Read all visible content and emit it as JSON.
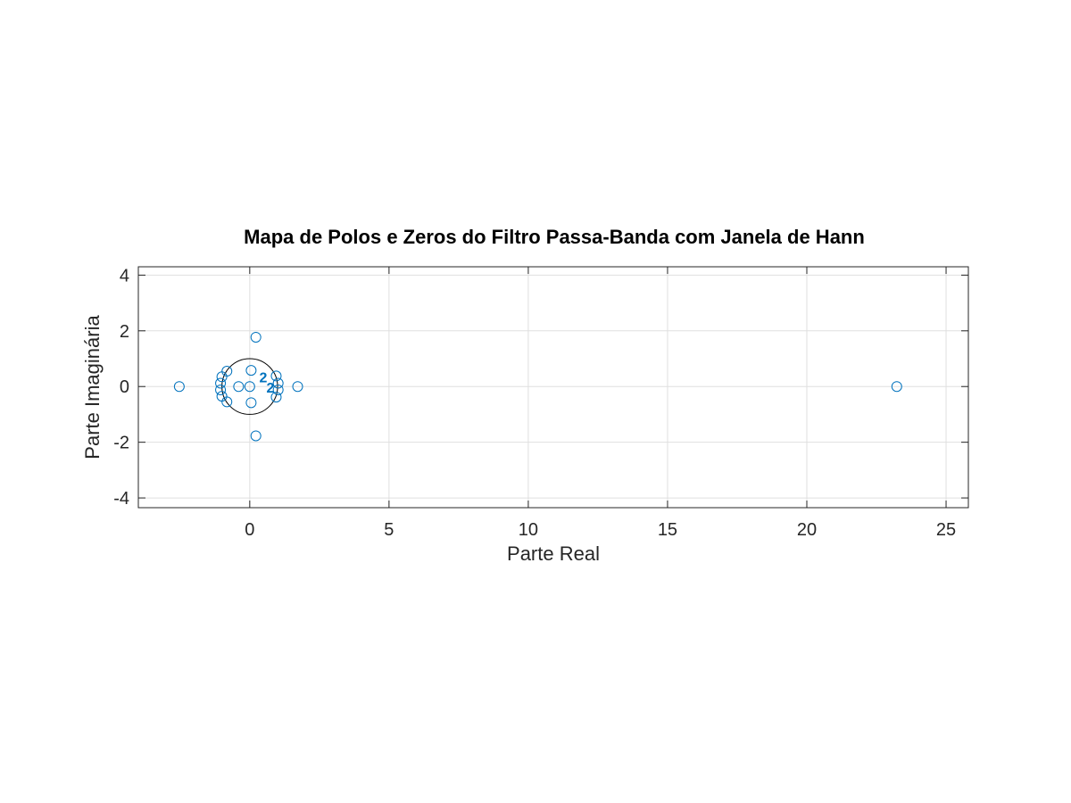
{
  "chart_data": {
    "type": "scatter",
    "title": "Mapa de Polos e Zeros do Filtro Passa-Banda com Janela de Hann",
    "xlabel": "Parte Real",
    "ylabel": "Parte Imaginária",
    "xlim": [
      -4,
      25.8
    ],
    "ylim": [
      -4.35,
      4.3
    ],
    "xticks": [
      0,
      5,
      10,
      15,
      20,
      25
    ],
    "yticks": [
      -4,
      -2,
      0,
      2,
      4
    ],
    "grid": true,
    "unit_circle": true,
    "series": [
      {
        "marker": "circle",
        "color": "#0072BD",
        "points": [
          {
            "x": -2.53,
            "y": 0
          },
          {
            "x": -1.0,
            "y": 0.35
          },
          {
            "x": -1.05,
            "y": 0.12
          },
          {
            "x": -1.05,
            "y": -0.12
          },
          {
            "x": -1.0,
            "y": -0.35
          },
          {
            "x": -0.82,
            "y": 0.55
          },
          {
            "x": -0.82,
            "y": -0.55
          },
          {
            "x": -0.4,
            "y": 0
          },
          {
            "x": 0.05,
            "y": 0.58
          },
          {
            "x": 0.05,
            "y": -0.58
          },
          {
            "x": 0.0,
            "y": 0
          },
          {
            "x": 0.22,
            "y": 1.77
          },
          {
            "x": 0.22,
            "y": -1.77
          },
          {
            "x": 0.95,
            "y": 0.38
          },
          {
            "x": 1.02,
            "y": 0.12
          },
          {
            "x": 1.02,
            "y": -0.12
          },
          {
            "x": 0.95,
            "y": -0.38
          },
          {
            "x": 1.72,
            "y": 0
          },
          {
            "x": 23.23,
            "y": 0
          }
        ]
      }
    ],
    "annotations": [
      {
        "text": "2",
        "x": 0.6,
        "y": -0.22
      },
      {
        "text": "2",
        "x": 0.34,
        "y": 0.15
      }
    ]
  }
}
